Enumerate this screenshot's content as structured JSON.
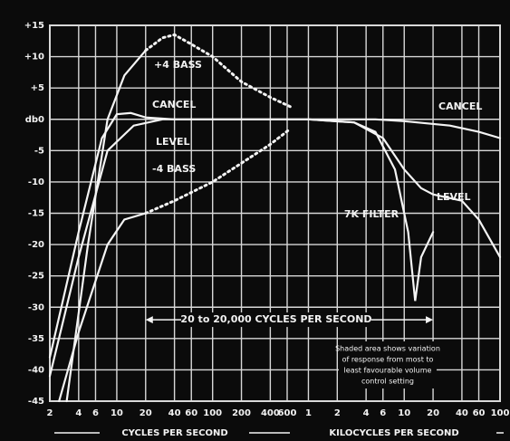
{
  "chart_data": {
    "type": "line",
    "xscale": "log",
    "grid": true,
    "background": "#0b0b0b",
    "grid_color": "#d8d8d8",
    "xlim": [
      2,
      100000
    ],
    "xticks": [
      2,
      4,
      6,
      10,
      20,
      40,
      60,
      100,
      200,
      400,
      600,
      {
        "value": 1000,
        "label": "1"
      },
      {
        "value": 2000,
        "label": "2"
      },
      {
        "value": 4000,
        "label": "4"
      },
      {
        "value": 6000,
        "label": "6"
      },
      {
        "value": 10000,
        "label": "10"
      },
      {
        "value": 20000,
        "label": "20"
      },
      {
        "value": 40000,
        "label": "40"
      },
      {
        "value": 60000,
        "label": "60"
      },
      {
        "value": 100000,
        "label": "100"
      }
    ],
    "ylim": [
      -45,
      15
    ],
    "yticks": [
      {
        "value": 15,
        "label": "+15"
      },
      {
        "value": 10,
        "label": "+10"
      },
      {
        "value": 5,
        "label": "+5"
      },
      {
        "value": 0,
        "label": "db0"
      },
      -5,
      -10,
      -15,
      -20,
      -25,
      -30,
      -35,
      -40,
      -45
    ],
    "x_label_left": "CYCLES PER SECOND",
    "x_label_right": "KILOCYCLES PER SECOND",
    "series": [
      {
        "name": "+4 BASS",
        "color": "#f4f4f4",
        "style": "solid",
        "x": [
          3,
          5,
          8,
          12,
          20
        ],
        "values": [
          -45,
          -20,
          0,
          7,
          11
        ]
      },
      {
        "color": "#f4f4f4",
        "style": "dotted",
        "x": [
          20,
          30,
          40,
          60,
          100,
          200,
          400,
          650
        ],
        "values": [
          11,
          13,
          13.5,
          12,
          10,
          6,
          3.5,
          2
        ]
      },
      {
        "name": "CANCEL",
        "color": "#f4f4f4",
        "style": "solid",
        "x": [
          2,
          4,
          7,
          10,
          14,
          20,
          40,
          1000,
          5000,
          10000,
          30000,
          60000,
          100000
        ],
        "values": [
          -38,
          -18,
          -3,
          0.8,
          1,
          0.3,
          0,
          0,
          0,
          -0.3,
          -1,
          -2,
          -3
        ]
      },
      {
        "name": "LEVEL",
        "color": "#f4f4f4",
        "style": "solid",
        "x": [
          2,
          4,
          8,
          15,
          30,
          1000,
          3000,
          6000,
          10000,
          15000,
          20000,
          40000,
          60000,
          100000
        ],
        "values": [
          -41,
          -22,
          -5,
          -1,
          0,
          0,
          -0.5,
          -3,
          -8,
          -11,
          -12,
          -13,
          -16,
          -22
        ]
      },
      {
        "name": "-4 BASS",
        "color": "#f4f4f4",
        "style": "solid",
        "x": [
          2.5,
          4,
          8,
          12,
          20
        ],
        "values": [
          -45,
          -34,
          -20,
          -16,
          -15
        ]
      },
      {
        "color": "#f4f4f4",
        "style": "dotted",
        "x": [
          20,
          40,
          100,
          200,
          400,
          650
        ],
        "values": [
          -15,
          -13,
          -10,
          -7,
          -4,
          -1.5
        ]
      },
      {
        "name": "7K FILTER",
        "color": "#f4f4f4",
        "style": "solid",
        "x": [
          1000,
          3000,
          5000,
          8000,
          11000,
          13000,
          15000,
          20000
        ],
        "values": [
          0,
          -0.5,
          -2,
          -8,
          -18,
          -29,
          -22,
          -18
        ]
      }
    ],
    "annotations": [
      "CANCEL",
      "LEVEL",
      "20 to 20,000 CYCLES PER SECOND"
    ],
    "note_lines": [
      "Shaded area shows variation",
      "of response from most to",
      "least favourable volume",
      "control setting"
    ]
  }
}
